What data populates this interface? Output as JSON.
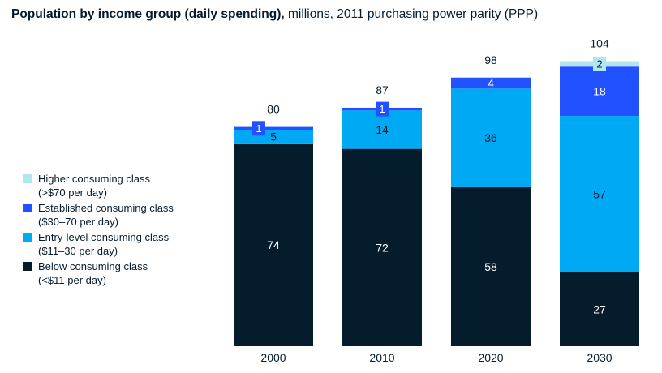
{
  "title": {
    "bold": "Population by income group (daily spending),",
    "rest": " millions, 2011 purchasing power parity (PPP)"
  },
  "legend": [
    {
      "line1": "Higher consuming class",
      "line2": "(>$70 per day)",
      "color": "#b0e6f2"
    },
    {
      "line1": "Established consuming class",
      "line2": "($30–70 per day)",
      "color": "#2251ff"
    },
    {
      "line1": "Entry-level consuming class",
      "line2": "($11–30 per day)",
      "color": "#00a9f4"
    },
    {
      "line1": "Below consuming class",
      "line2": "(<$11 per day)",
      "color": "#051c2c"
    }
  ],
  "chart_data": {
    "type": "bar",
    "stacked": true,
    "title": "Population by income group (daily spending), millions, 2011 purchasing power parity (PPP)",
    "categories": [
      "2000",
      "2010",
      "2020",
      "2030"
    ],
    "series": [
      {
        "name": "Below consuming class",
        "values": [
          74,
          72,
          58,
          27
        ],
        "color": "#051c2c"
      },
      {
        "name": "Entry-level consuming class",
        "values": [
          5,
          14,
          36,
          57
        ],
        "color": "#00a9f4"
      },
      {
        "name": "Established consuming class",
        "values": [
          1,
          1,
          4,
          18
        ],
        "color": "#2251ff"
      },
      {
        "name": "Higher consuming class",
        "values": [
          null,
          null,
          null,
          2
        ],
        "color": "#b0e6f2"
      }
    ],
    "totals": [
      "80",
      "87",
      "98",
      "104"
    ],
    "data_labels": [
      [
        "74",
        "5",
        "1",
        null
      ],
      [
        "72",
        "14",
        "1",
        null
      ],
      [
        "58",
        "36",
        "4",
        null
      ],
      [
        "27",
        "57",
        "18",
        "2"
      ]
    ],
    "ylim": [
      0,
      104
    ]
  }
}
